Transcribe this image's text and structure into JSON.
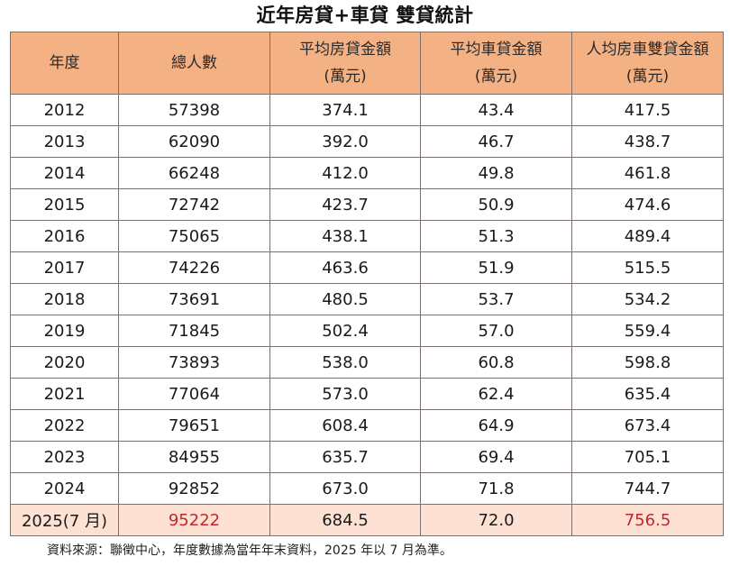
{
  "title": "近年房貸+車貸  雙貸統計",
  "table": {
    "headers": [
      {
        "line1": "年度",
        "line2": ""
      },
      {
        "line1": "總人數",
        "line2": ""
      },
      {
        "line1": "平均房貸金額",
        "line2": "(萬元)"
      },
      {
        "line1": "平均車貸金額",
        "line2": "(萬元)"
      },
      {
        "line1": "人均房車雙貸金額",
        "line2": "(萬元)"
      }
    ],
    "rows": [
      {
        "year": "2012",
        "total": "57398",
        "mortgage": "374.1",
        "car": "43.4",
        "combined": "417.5"
      },
      {
        "year": "2013",
        "total": "62090",
        "mortgage": "392.0",
        "car": "46.7",
        "combined": "438.7"
      },
      {
        "year": "2014",
        "total": "66248",
        "mortgage": "412.0",
        "car": "49.8",
        "combined": "461.8"
      },
      {
        "year": "2015",
        "total": "72742",
        "mortgage": "423.7",
        "car": "50.9",
        "combined": "474.6"
      },
      {
        "year": "2016",
        "total": "75065",
        "mortgage": "438.1",
        "car": "51.3",
        "combined": "489.4"
      },
      {
        "year": "2017",
        "total": "74226",
        "mortgage": "463.6",
        "car": "51.9",
        "combined": "515.5"
      },
      {
        "year": "2018",
        "total": "73691",
        "mortgage": "480.5",
        "car": "53.7",
        "combined": "534.2"
      },
      {
        "year": "2019",
        "total": "71845",
        "mortgage": "502.4",
        "car": "57.0",
        "combined": "559.4"
      },
      {
        "year": "2020",
        "total": "73893",
        "mortgage": "538.0",
        "car": "60.8",
        "combined": "598.8"
      },
      {
        "year": "2021",
        "total": "77064",
        "mortgage": "573.0",
        "car": "62.4",
        "combined": "635.4"
      },
      {
        "year": "2022",
        "total": "79651",
        "mortgage": "608.4",
        "car": "64.9",
        "combined": "673.4"
      },
      {
        "year": "2023",
        "total": "84955",
        "mortgage": "635.7",
        "car": "69.4",
        "combined": "705.1"
      },
      {
        "year": "2024",
        "total": "92852",
        "mortgage": "673.0",
        "car": "71.8",
        "combined": "744.7"
      },
      {
        "year": "2025(7 月)",
        "total": "95222",
        "mortgage": "684.5",
        "car": "72.0",
        "combined": "756.5"
      }
    ]
  },
  "colors": {
    "header_bg": "#f4b184",
    "highlight_row_bg": "#fde2d4",
    "highlight_text": "#c3262c",
    "border": "#7a7070"
  },
  "footnote": "資料來源：聯徵中心，年度數據為當年年末資料，2025 年以 7 月為準。"
}
